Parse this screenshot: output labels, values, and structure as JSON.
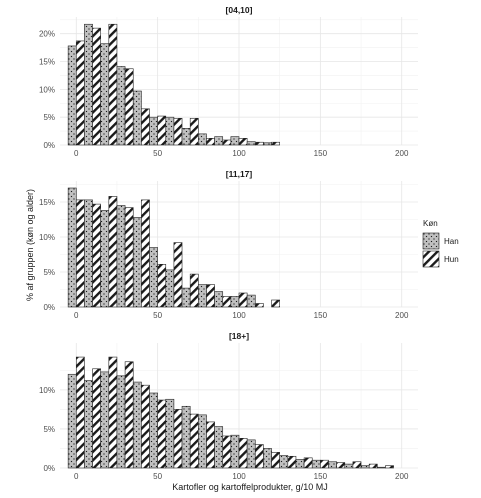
{
  "chart_data": {
    "type": "bar",
    "xlabel": "Kartofler og kartoffelprodukter, g/10 MJ",
    "ylabel": "% af gruppen (køn og alder)",
    "x_ticks": [
      0,
      50,
      100,
      150,
      200
    ],
    "bin_width": 10,
    "bin_starts": [
      0,
      10,
      20,
      30,
      40,
      50,
      60,
      70,
      80,
      90,
      100,
      110,
      120,
      130,
      140,
      150,
      160,
      170,
      180,
      190
    ],
    "legend": {
      "title": "Køn",
      "entries": [
        {
          "label": "Han",
          "pattern": "dots"
        },
        {
          "label": "Hun",
          "pattern": "stripes"
        }
      ],
      "position": "right"
    },
    "colors": {
      "bar_fill": "#c0c0c0",
      "bar_stroke": "#222222",
      "hatch": "#1a1a1a"
    },
    "grid": true,
    "panels": [
      {
        "label": "[04,10]",
        "ylim": [
          0,
          23
        ],
        "y_ticks": [
          0,
          5,
          10,
          15,
          20
        ],
        "y_tick_labels": [
          "0%",
          "5%",
          "10%",
          "15%",
          "20%"
        ],
        "series": [
          {
            "name": "Han",
            "values": [
              17.8,
              21.7,
              18.2,
              14.1,
              9.7,
              5.0,
              5.0,
              3.0,
              2.0,
              1.5,
              1.5,
              0.6,
              0.4,
              0,
              0,
              0,
              0,
              0,
              0,
              0
            ]
          },
          {
            "name": "Hun",
            "values": [
              18.7,
              21.0,
              21.7,
              13.7,
              6.5,
              5.2,
              4.8,
              4.8,
              1.2,
              0.9,
              1.2,
              0.5,
              0.5,
              0,
              0,
              0,
              0,
              0,
              0,
              0
            ]
          }
        ]
      },
      {
        "label": "[11,17]",
        "ylim": [
          0,
          18
        ],
        "y_ticks": [
          0,
          5,
          10,
          15
        ],
        "y_tick_labels": [
          "0%",
          "5%",
          "10%",
          "15%"
        ],
        "series": [
          {
            "name": "Han",
            "values": [
              17.0,
              15.3,
              13.8,
              14.5,
              12.8,
              8.5,
              5.3,
              2.7,
              3.2,
              2.2,
              1.5,
              1.7,
              0,
              0,
              0,
              0,
              0,
              0,
              0,
              0
            ]
          },
          {
            "name": "Hun",
            "values": [
              15.3,
              14.7,
              15.8,
              14.2,
              15.3,
              6.1,
              9.2,
              4.7,
              3.2,
              1.5,
              2.0,
              0.5,
              1.0,
              0,
              0,
              0,
              0,
              0,
              0,
              0
            ]
          }
        ]
      },
      {
        "label": "[18+]",
        "ylim": [
          0,
          16
        ],
        "y_ticks": [
          0,
          5,
          10
        ],
        "y_tick_labels": [
          "0%",
          "5%",
          "10%"
        ],
        "series": [
          {
            "name": "Han",
            "values": [
              12.0,
              11.2,
              12.3,
              11.8,
              11.0,
              9.6,
              8.8,
              7.9,
              6.8,
              5.3,
              4.2,
              3.6,
              2.5,
              1.6,
              1.1,
              1.0,
              0.8,
              0.5,
              0.3,
              0.1
            ]
          },
          {
            "name": "Hun",
            "values": [
              14.2,
              12.7,
              14.2,
              13.6,
              10.6,
              8.7,
              7.5,
              6.9,
              5.9,
              4.1,
              3.8,
              3.0,
              2.0,
              1.5,
              1.3,
              1.0,
              0.7,
              0.8,
              0.5,
              0.3
            ]
          }
        ]
      }
    ]
  }
}
